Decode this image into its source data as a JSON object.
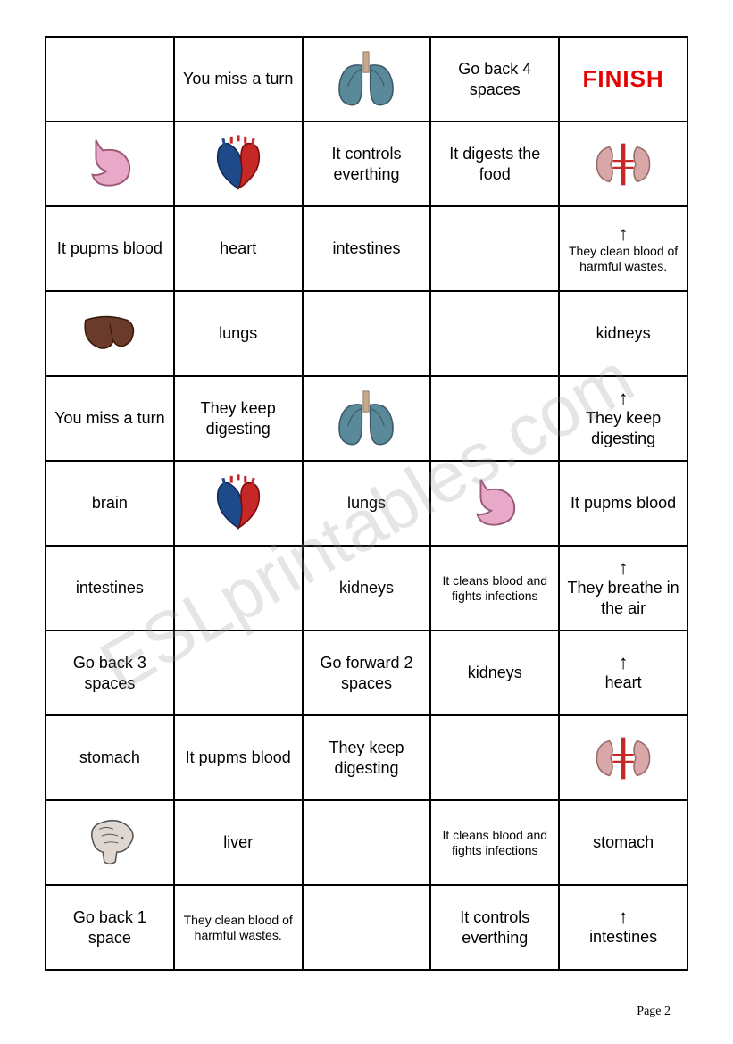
{
  "page_label": "Page 2",
  "watermark": "ESLprintables.com",
  "finish_text": "FINISH",
  "colors": {
    "border": "#000000",
    "text": "#000000",
    "finish": "#e60000",
    "background": "#ffffff",
    "watermark": "rgba(150,150,150,0.25)"
  },
  "organ_colors": {
    "lungs_fill": "#5a8a9a",
    "lungs_trachea": "#c9a88a",
    "heart_red": "#c62828",
    "heart_blue": "#1e4a8a",
    "stomach_fill": "#e8a8c8",
    "stomach_stroke": "#9a5a7a",
    "liver_fill": "#6a3a2a",
    "kidneys_fill": "#d8a8a8",
    "kidneys_vessel": "#c62828",
    "brain_fill": "#e0d8d0",
    "brain_stroke": "#555555"
  },
  "grid": [
    [
      {
        "type": "empty"
      },
      {
        "type": "text",
        "text": "You miss a turn"
      },
      {
        "type": "icon",
        "icon": "lungs"
      },
      {
        "type": "text",
        "text": "Go back 4 spaces"
      },
      {
        "type": "finish"
      }
    ],
    [
      {
        "type": "icon",
        "icon": "stomach"
      },
      {
        "type": "icon",
        "icon": "heart"
      },
      {
        "type": "text",
        "text": "It controls everthing"
      },
      {
        "type": "text",
        "text": "It digests the food"
      },
      {
        "type": "icon",
        "icon": "kidneys"
      }
    ],
    [
      {
        "type": "text",
        "text": "It pupms blood"
      },
      {
        "type": "text",
        "text": "heart"
      },
      {
        "type": "text",
        "text": "intestines"
      },
      {
        "type": "empty"
      },
      {
        "type": "text",
        "text": "They clean blood of harmful wastes.",
        "small": true,
        "arrow": "up"
      }
    ],
    [
      {
        "type": "icon",
        "icon": "liver"
      },
      {
        "type": "text",
        "text": "lungs"
      },
      {
        "type": "empty"
      },
      {
        "type": "empty"
      },
      {
        "type": "text",
        "text": "kidneys"
      }
    ],
    [
      {
        "type": "text",
        "text": "You miss a turn"
      },
      {
        "type": "text",
        "text": "They keep digesting"
      },
      {
        "type": "icon",
        "icon": "lungs"
      },
      {
        "type": "empty"
      },
      {
        "type": "text",
        "text": "They keep digesting",
        "arrow": "up"
      }
    ],
    [
      {
        "type": "text",
        "text": "brain"
      },
      {
        "type": "icon",
        "icon": "heart"
      },
      {
        "type": "text",
        "text": "lungs"
      },
      {
        "type": "icon",
        "icon": "stomach"
      },
      {
        "type": "text",
        "text": "It pupms blood"
      }
    ],
    [
      {
        "type": "text",
        "text": "intestines"
      },
      {
        "type": "empty"
      },
      {
        "type": "text",
        "text": "kidneys"
      },
      {
        "type": "text",
        "text": "It cleans blood and fights infections",
        "small": true
      },
      {
        "type": "text",
        "text": "They breathe in the air",
        "arrow": "up"
      }
    ],
    [
      {
        "type": "text",
        "text": "Go back 3 spaces"
      },
      {
        "type": "empty"
      },
      {
        "type": "text",
        "text": "Go forward 2 spaces"
      },
      {
        "type": "text",
        "text": "kidneys"
      },
      {
        "type": "text",
        "text": "heart",
        "arrow": "up"
      }
    ],
    [
      {
        "type": "text",
        "text": "stomach"
      },
      {
        "type": "text",
        "text": "It pupms blood"
      },
      {
        "type": "text",
        "text": "They keep digesting"
      },
      {
        "type": "empty"
      },
      {
        "type": "icon",
        "icon": "kidneys"
      }
    ],
    [
      {
        "type": "icon",
        "icon": "brain"
      },
      {
        "type": "text",
        "text": "liver"
      },
      {
        "type": "empty"
      },
      {
        "type": "text",
        "text": "It cleans blood and fights infections",
        "small": true
      },
      {
        "type": "text",
        "text": "stomach"
      }
    ],
    [
      {
        "type": "text",
        "text": "Go back 1 space"
      },
      {
        "type": "text",
        "text": "They clean blood of harmful wastes.",
        "small": true
      },
      {
        "type": "empty"
      },
      {
        "type": "text",
        "text": "It controls everthing"
      },
      {
        "type": "text",
        "text": "intestines",
        "arrow": "up"
      }
    ]
  ]
}
